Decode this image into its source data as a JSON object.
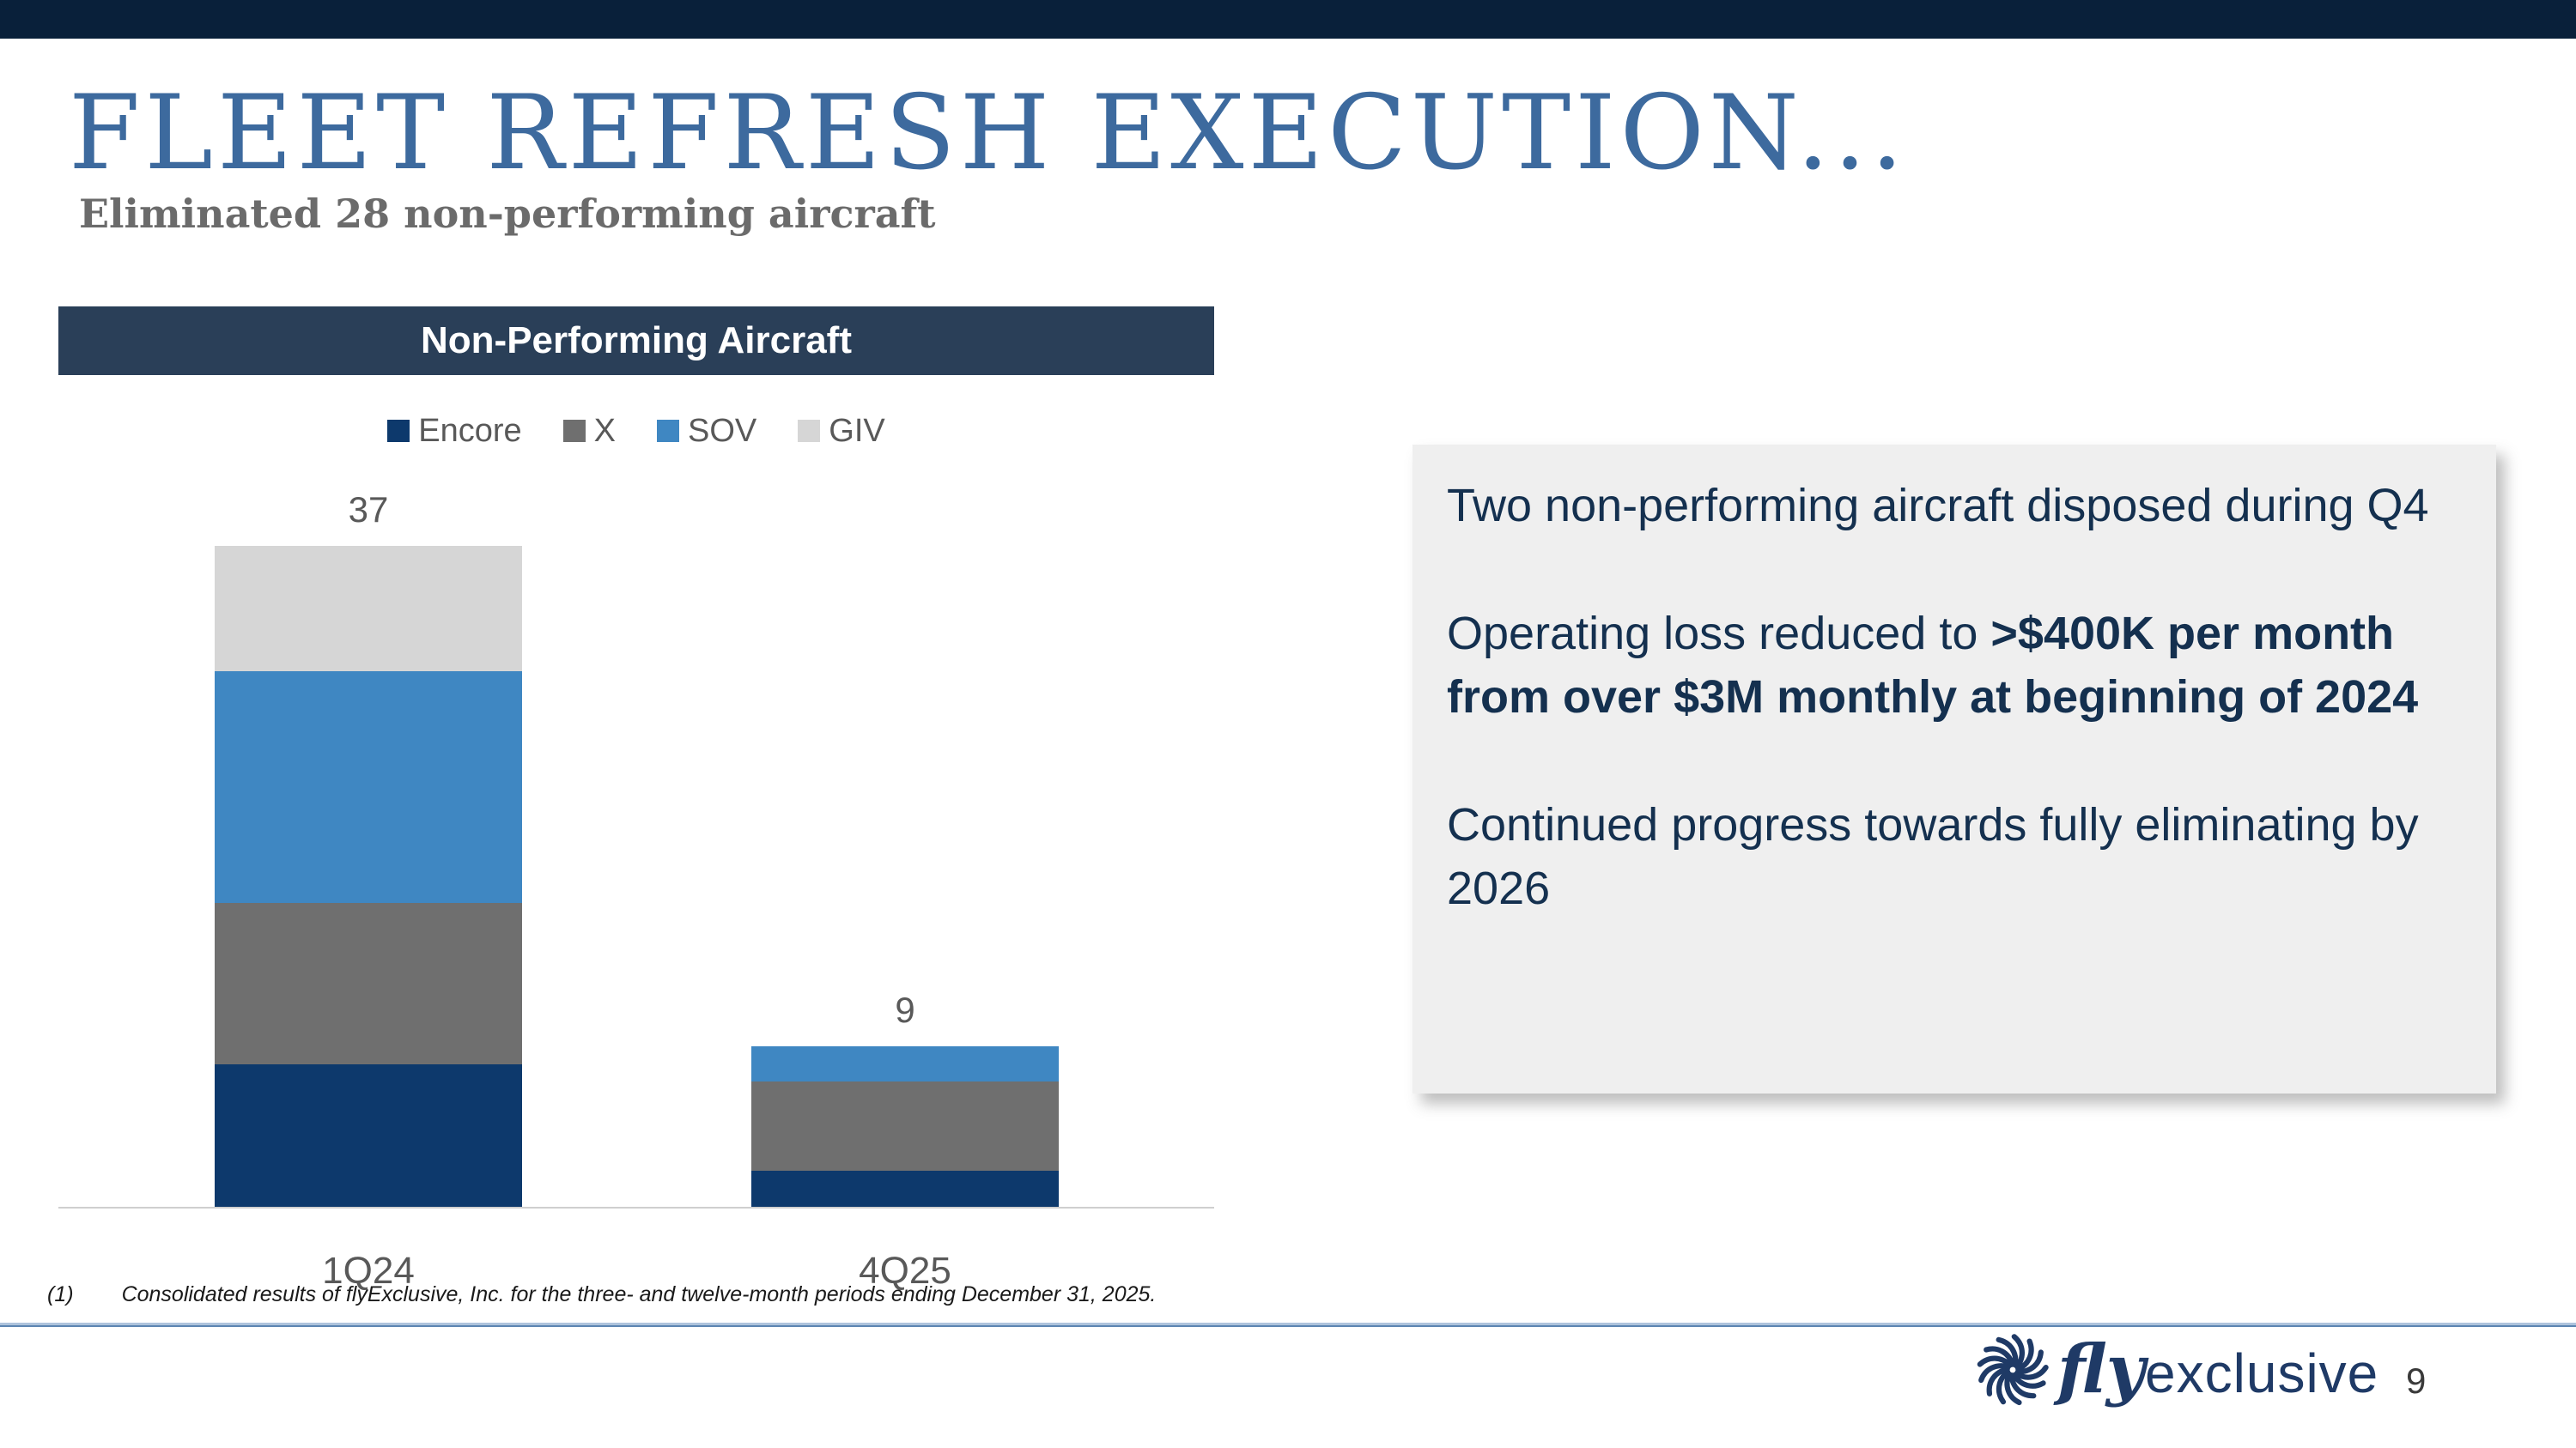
{
  "slide": {
    "title": "FLEET REFRESH EXECUTION...",
    "subtitle": "Eliminated 28 non-performing aircraft"
  },
  "chart_data": {
    "type": "bar",
    "stacked": true,
    "title": "Non-Performing Aircraft",
    "categories": [
      "1Q24",
      "4Q25"
    ],
    "series": [
      {
        "name": "Encore",
        "color": "#0D396C",
        "values": [
          8,
          2
        ]
      },
      {
        "name": "X",
        "color": "#6F6F6F",
        "values": [
          9,
          5
        ]
      },
      {
        "name": "SOV",
        "color": "#3F87C2",
        "values": [
          13,
          2
        ]
      },
      {
        "name": "GIV",
        "color": "#D6D6D6",
        "values": [
          7,
          0
        ]
      }
    ],
    "totals": [
      37,
      9
    ],
    "value_labels": [
      "37",
      "9"
    ],
    "legend_position": "top",
    "grid": false,
    "ylim": [
      0,
      40
    ],
    "xlabel": "",
    "ylabel": ""
  },
  "callout": {
    "paragraphs": [
      {
        "text_regular": "Two non-performing aircraft disposed during Q4",
        "text_bold": ""
      },
      {
        "text_regular": "Operating loss reduced to ",
        "text_bold": ">$400K per month from over $3M monthly at beginning of 2024"
      },
      {
        "text_regular": "Continued progress towards fully eliminating by 2026",
        "text_bold": ""
      }
    ]
  },
  "footnote": {
    "marker": "(1)",
    "text": "Consolidated results of flyExclusive, Inc. for the three- and twelve-month periods ending December 31, 2025."
  },
  "footer": {
    "brand_fly": "fly",
    "brand_exclusive": "exclusive",
    "page_number": "9"
  },
  "colors": {
    "top_bar": "#09203A",
    "title": "#3D6A9E",
    "chart_header_bg": "#2A3F58",
    "callout_bg": "#EFEFEF",
    "callout_text": "#14304F",
    "brand_navy": "#1F3A66"
  }
}
